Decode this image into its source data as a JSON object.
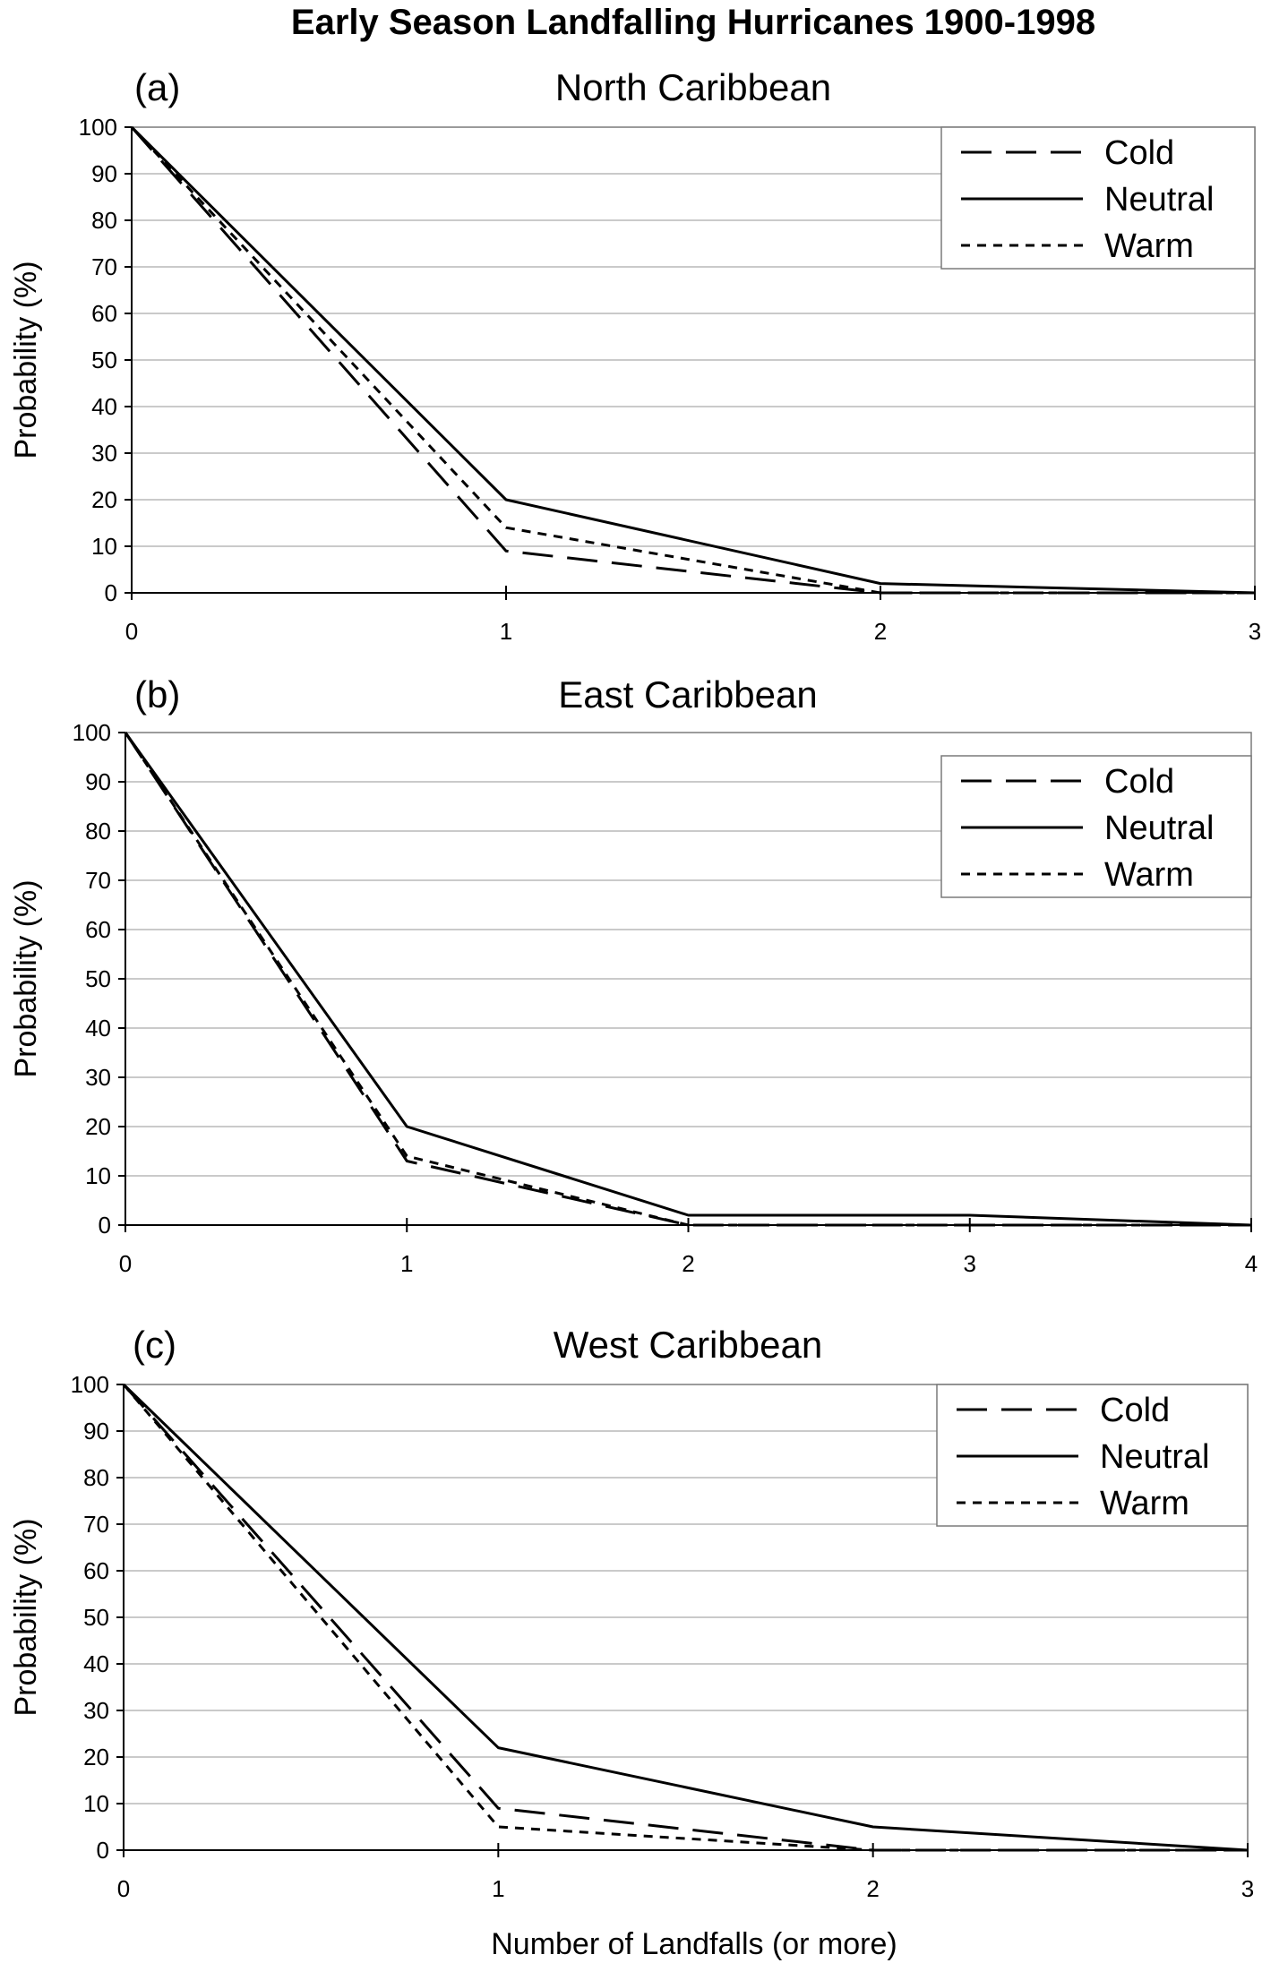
{
  "chart_data": {
    "title": "Early Season Landfalling Hurricanes 1900-1998",
    "xlabel": "Number of Landfalls (or more)",
    "panels": [
      {
        "type": "line",
        "letter": "(a)",
        "title": "North Caribbean",
        "ylabel": "Probability (%)",
        "ylim": [
          0,
          100
        ],
        "yticks": [
          0,
          10,
          20,
          30,
          40,
          50,
          60,
          70,
          80,
          90,
          100
        ],
        "xlim": [
          0,
          3
        ],
        "x": [
          0,
          1,
          2,
          3
        ],
        "grid": true,
        "legend": "top-right",
        "series": [
          {
            "name": "Cold",
            "style": "dashed",
            "values": [
              100,
              9,
              0,
              0
            ]
          },
          {
            "name": "Neutral",
            "style": "solid",
            "values": [
              100,
              20,
              2,
              0
            ]
          },
          {
            "name": "Warm",
            "style": "dotted",
            "values": [
              100,
              14,
              0,
              0
            ]
          }
        ]
      },
      {
        "type": "line",
        "letter": "(b)",
        "title": "East Caribbean",
        "ylabel": "Probability (%)",
        "ylim": [
          0,
          100
        ],
        "yticks": [
          0,
          10,
          20,
          30,
          40,
          50,
          60,
          70,
          80,
          90,
          100
        ],
        "xlim": [
          0,
          4
        ],
        "x": [
          0,
          1,
          2,
          3,
          4
        ],
        "grid": true,
        "legend": "top-right",
        "series": [
          {
            "name": "Cold",
            "style": "dashed",
            "values": [
              100,
              13,
              0,
              0,
              0
            ]
          },
          {
            "name": "Neutral",
            "style": "solid",
            "values": [
              100,
              20,
              2,
              2,
              0
            ]
          },
          {
            "name": "Warm",
            "style": "dotted",
            "values": [
              100,
              14,
              0,
              0,
              0
            ]
          }
        ]
      },
      {
        "type": "line",
        "letter": "(c)",
        "title": "West Caribbean",
        "ylabel": "Probability (%)",
        "ylim": [
          0,
          100
        ],
        "yticks": [
          0,
          10,
          20,
          30,
          40,
          50,
          60,
          70,
          80,
          90,
          100
        ],
        "xlim": [
          0,
          3
        ],
        "x": [
          0,
          1,
          2,
          3
        ],
        "grid": true,
        "legend": "top-right",
        "series": [
          {
            "name": "Cold",
            "style": "dashed",
            "values": [
              100,
              9,
              0,
              0
            ]
          },
          {
            "name": "Neutral",
            "style": "solid",
            "values": [
              100,
              22,
              5,
              0
            ]
          },
          {
            "name": "Warm",
            "style": "dotted",
            "values": [
              100,
              5,
              0,
              0
            ]
          }
        ]
      }
    ]
  }
}
